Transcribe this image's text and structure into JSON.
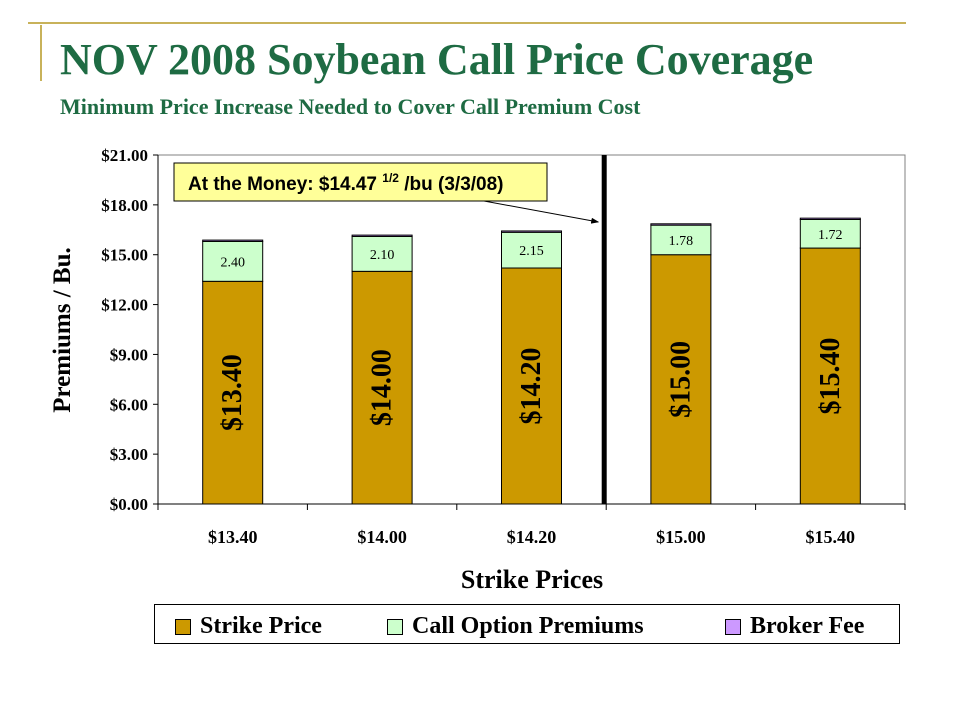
{
  "title": "NOV 2008 Soybean Call Price Coverage",
  "subtitle": "Minimum Price Increase Needed to Cover Call Premium Cost",
  "colors": {
    "strike": "#cc9900",
    "premium": "#ccffcc",
    "broker": "#cc99ff",
    "title": "#1e6b43"
  },
  "chart_data": {
    "type": "bar",
    "stacked": true,
    "categories": [
      "$13.40",
      "$14.00",
      "$14.20",
      "$15.00",
      "$15.40"
    ],
    "series": [
      {
        "name": "Strike Price",
        "values": [
          13.4,
          14.0,
          14.2,
          15.0,
          15.4
        ],
        "labels": [
          "$13.40",
          "$14.00",
          "$14.20",
          "$15.00",
          "$15.40"
        ]
      },
      {
        "name": "Call Option Premiums",
        "values": [
          2.4,
          2.1,
          2.15,
          1.78,
          1.72
        ],
        "labels": [
          "2.40",
          "2.10",
          "2.15",
          "1.78",
          "1.72"
        ]
      },
      {
        "name": "Broker Fee",
        "values": [
          0.08,
          0.08,
          0.08,
          0.08,
          0.08
        ]
      }
    ],
    "ylim": [
      0,
      21
    ],
    "yticks": [
      "$0.00",
      "$3.00",
      "$6.00",
      "$9.00",
      "$12.00",
      "$15.00",
      "$18.00",
      "$21.00"
    ],
    "xlabel": "Strike Prices",
    "ylabel": "Premiums / Bu.",
    "grid": false,
    "legend_position": "bottom",
    "at_the_money": {
      "value": 14.475,
      "text": "At the Money: $14.47",
      "fraction": "1/2",
      "suffix": "/bu (3/3/08)"
    }
  }
}
